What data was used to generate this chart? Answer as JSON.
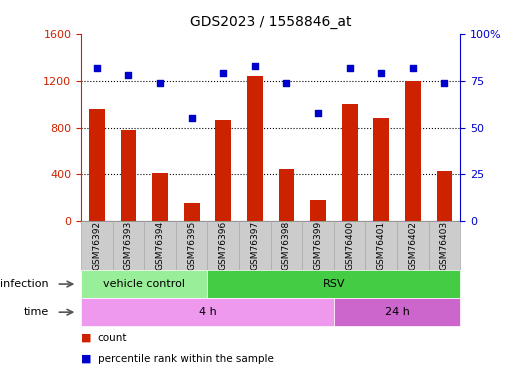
{
  "title": "GDS2023 / 1558846_at",
  "samples": [
    "GSM76392",
    "GSM76393",
    "GSM76394",
    "GSM76395",
    "GSM76396",
    "GSM76397",
    "GSM76398",
    "GSM76399",
    "GSM76400",
    "GSM76401",
    "GSM76402",
    "GSM76403"
  ],
  "counts": [
    960,
    780,
    410,
    155,
    860,
    1240,
    450,
    185,
    1000,
    880,
    1200,
    430
  ],
  "percentile_ranks": [
    82,
    78,
    74,
    55,
    79,
    83,
    74,
    58,
    82,
    79,
    82,
    74
  ],
  "left_ylim": [
    0,
    1600
  ],
  "left_yticks": [
    0,
    400,
    800,
    1200,
    1600
  ],
  "right_ylim": [
    0,
    100
  ],
  "right_yticks": [
    0,
    25,
    50,
    75,
    100
  ],
  "right_yticklabels": [
    "0",
    "25",
    "50",
    "75",
    "100%"
  ],
  "bar_color": "#cc2200",
  "dot_color": "#0000cc",
  "left_tick_color": "#cc2200",
  "right_tick_color": "#0000cc",
  "infection_groups": [
    {
      "label": "vehicle control",
      "start": 0,
      "end": 4,
      "color": "#99ee99"
    },
    {
      "label": "RSV",
      "start": 4,
      "end": 12,
      "color": "#44cc44"
    }
  ],
  "time_groups": [
    {
      "label": "4 h",
      "start": 0,
      "end": 8,
      "color": "#ee99ee"
    },
    {
      "label": "24 h",
      "start": 8,
      "end": 12,
      "color": "#cc66cc"
    }
  ],
  "infection_label": "infection",
  "time_label": "time",
  "legend_count_label": "count",
  "legend_percentile_label": "percentile rank within the sample",
  "grid_yticks": [
    400,
    800,
    1200
  ],
  "background_color": "#ffffff",
  "sample_label_bg": "#cccccc",
  "sample_label_edge": "#aaaaaa",
  "figsize": [
    5.23,
    3.75
  ],
  "dpi": 100
}
